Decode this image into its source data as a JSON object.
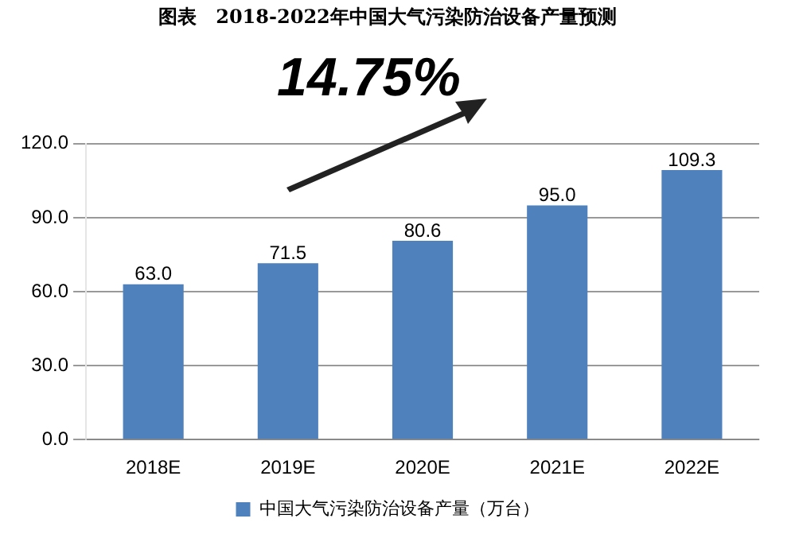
{
  "chart_data": {
    "type": "bar",
    "title": "图表　2018-2022年中国大气污染防治设备产量预测",
    "categories": [
      "2018E",
      "2019E",
      "2020E",
      "2021E",
      "2022E"
    ],
    "series": [
      {
        "name": "中国大气污染防治设备产量（万台）",
        "color": "#4f81bd",
        "values": [
          63.0,
          71.5,
          80.6,
          95.0,
          109.3
        ],
        "value_labels": [
          "63.0",
          "71.5",
          "80.6",
          "95.0",
          "109.3"
        ]
      }
    ],
    "ylim": [
      0,
      120
    ],
    "yticks": [
      {
        "value": 0,
        "label": "0.0"
      },
      {
        "value": 30,
        "label": "30.0"
      },
      {
        "value": 60,
        "label": "60.0"
      },
      {
        "value": 90,
        "label": "90.0"
      },
      {
        "value": 120,
        "label": "120.0"
      }
    ],
    "grid": "y",
    "legend": "bottom",
    "annotations": [
      "14.75%"
    ]
  }
}
